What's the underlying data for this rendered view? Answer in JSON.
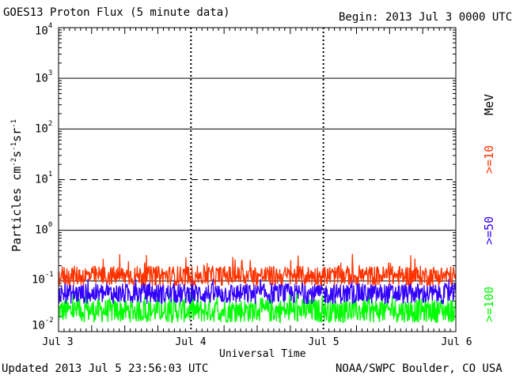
{
  "title": "GOES13 Proton Flux (5 minute data)",
  "begin_label": "Begin: 2013 Jul 3 0000 UTC",
  "updated_label": "Updated 2013 Jul  5 23:56:03 UTC",
  "credit_label": "NOAA/SWPC Boulder, CO USA",
  "chart_data": {
    "type": "line",
    "title": "GOES13 Proton Flux (5 minute data)",
    "xlabel": "Universal Time",
    "ylabel_prefix": "Particles cm",
    "ylabel_parts": [
      {
        "base": "Particles cm",
        "exp": "-2"
      },
      {
        "base": "s",
        "exp": "-1"
      },
      {
        "base": "sr",
        "exp": "-1"
      }
    ],
    "x_ticks": [
      "Jul 3",
      "Jul 4",
      "Jul 5",
      "Jul 6"
    ],
    "y_scale": "log",
    "y_ticks": [
      {
        "base": "10",
        "exp": "-2"
      },
      {
        "base": "10",
        "exp": "-1"
      },
      {
        "base": "10",
        "exp": "0"
      },
      {
        "base": "10",
        "exp": "1"
      },
      {
        "base": "10",
        "exp": "2"
      },
      {
        "base": "10",
        "exp": "3"
      },
      {
        "base": "10",
        "exp": "4"
      }
    ],
    "ylim": [
      0.01,
      10000
    ],
    "xlim_days": [
      "2013-07-03",
      "2013-07-06"
    ],
    "legend_unit": "MeV",
    "series": [
      {
        "name": ">=10",
        "color": "#ff3300",
        "typical_range": [
          0.08,
          0.2
        ],
        "peak": 0.37
      },
      {
        "name": ">=50",
        "color": "#3300ff",
        "typical_range": [
          0.035,
          0.09
        ],
        "peak": 0.11
      },
      {
        "name": ">=100",
        "color": "#00ff00",
        "typical_range": [
          0.015,
          0.045
        ],
        "peak": 0.06
      }
    ],
    "reference_lines": [
      {
        "value": 10,
        "style": "dashed"
      }
    ]
  }
}
